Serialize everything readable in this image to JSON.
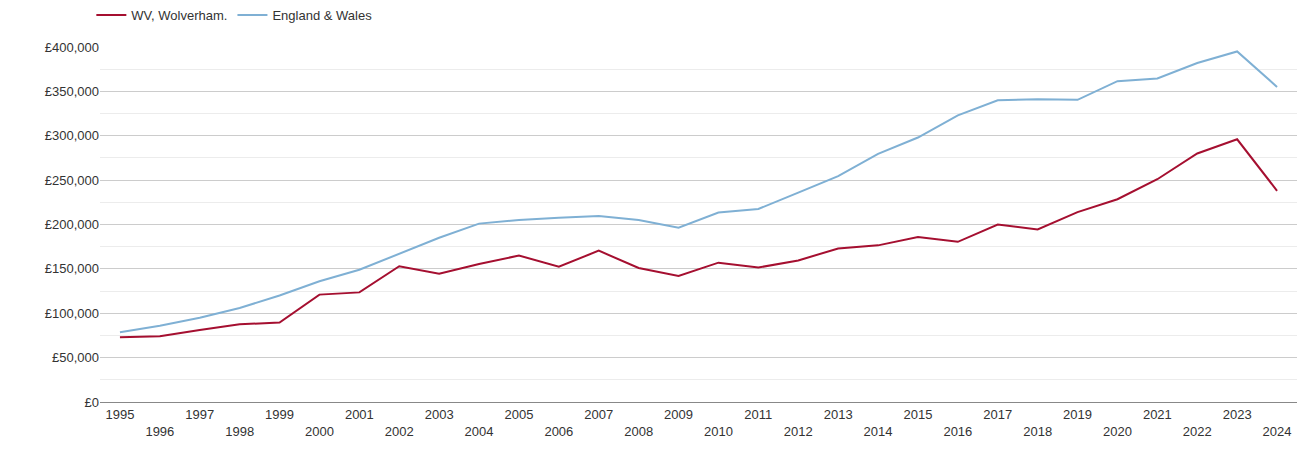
{
  "chart_data": {
    "type": "line",
    "x": [
      1995,
      1996,
      1997,
      1998,
      1999,
      2000,
      2001,
      2002,
      2003,
      2004,
      2005,
      2006,
      2007,
      2008,
      2009,
      2010,
      2011,
      2012,
      2013,
      2014,
      2015,
      2016,
      2017,
      2018,
      2019,
      2020,
      2021,
      2022,
      2023,
      2024
    ],
    "series": [
      {
        "name": "WV, Wolverham.",
        "color": "#a50f30",
        "values": [
          73000,
          74000,
          81000,
          87500,
          89500,
          121000,
          123500,
          153000,
          144500,
          155500,
          165000,
          152500,
          170500,
          151000,
          142000,
          157000,
          151500,
          159500,
          173000,
          176500,
          186000,
          180500,
          200000,
          194500,
          214000,
          228500,
          251000,
          280000,
          296000,
          238000
        ]
      },
      {
        "name": "England & Wales",
        "color": "#7fb0d4",
        "values": [
          78500,
          86000,
          95000,
          106000,
          120000,
          136000,
          149000,
          167000,
          185000,
          201000,
          205000,
          207500,
          209500,
          205000,
          196500,
          213500,
          217500,
          236000,
          254500,
          279500,
          298000,
          323000,
          340000,
          341000,
          340500,
          361500,
          364500,
          382000,
          395000,
          355000
        ]
      }
    ],
    "xlim": [
      1994.5,
      2024.5
    ],
    "xticks": [
      1995,
      1996,
      1997,
      1998,
      1999,
      2000,
      2001,
      2002,
      2003,
      2004,
      2005,
      2006,
      2007,
      2008,
      2009,
      2010,
      2011,
      2012,
      2013,
      2014,
      2015,
      2016,
      2017,
      2018,
      2019,
      2020,
      2021,
      2022,
      2023,
      2024
    ],
    "ylim": [
      0,
      400000
    ],
    "yticks": [
      {
        "value": 0,
        "label": "£0"
      },
      {
        "value": 50000,
        "label": "£50,000"
      },
      {
        "value": 100000,
        "label": "£100,000"
      },
      {
        "value": 150000,
        "label": "£150,000"
      },
      {
        "value": 200000,
        "label": "£200,000"
      },
      {
        "value": 250000,
        "label": "£250,000"
      },
      {
        "value": 300000,
        "label": "£300,000"
      },
      {
        "value": 350000,
        "label": "£350,000"
      },
      {
        "value": 400000,
        "label": "£400,000"
      }
    ],
    "grid": true,
    "legend": "top left"
  }
}
